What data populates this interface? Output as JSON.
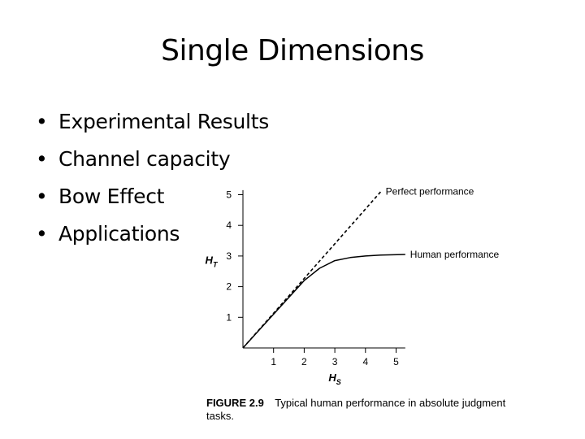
{
  "slide": {
    "title": "Single Dimensions",
    "bullet_symbol": "•",
    "bullets": [
      "Experimental Results",
      "Channel capacity",
      "Bow Effect",
      "Applications"
    ]
  },
  "figure": {
    "caption_label": "FIGURE 2.9",
    "caption_text": "Typical human performance in absolute judgment tasks."
  },
  "chart_data": {
    "type": "line",
    "xlabel": "HS",
    "ylabel": "HT",
    "xlim": [
      0,
      5.5
    ],
    "ylim": [
      0,
      5.5
    ],
    "x_ticks": [
      1,
      2,
      3,
      4,
      5
    ],
    "y_ticks": [
      1,
      2,
      3,
      4,
      5
    ],
    "grid": false,
    "series": [
      {
        "name": "Perfect performance",
        "style": "dashed",
        "x": [
          0,
          4.5
        ],
        "y": [
          0,
          5.1
        ]
      },
      {
        "name": "Human performance",
        "style": "solid",
        "x": [
          0,
          0.5,
          1,
          1.5,
          2,
          2.5,
          3,
          3.5,
          4,
          4.5,
          5.3
        ],
        "y": [
          0,
          0.55,
          1.1,
          1.65,
          2.2,
          2.6,
          2.85,
          2.95,
          3.0,
          3.03,
          3.05
        ]
      }
    ]
  }
}
